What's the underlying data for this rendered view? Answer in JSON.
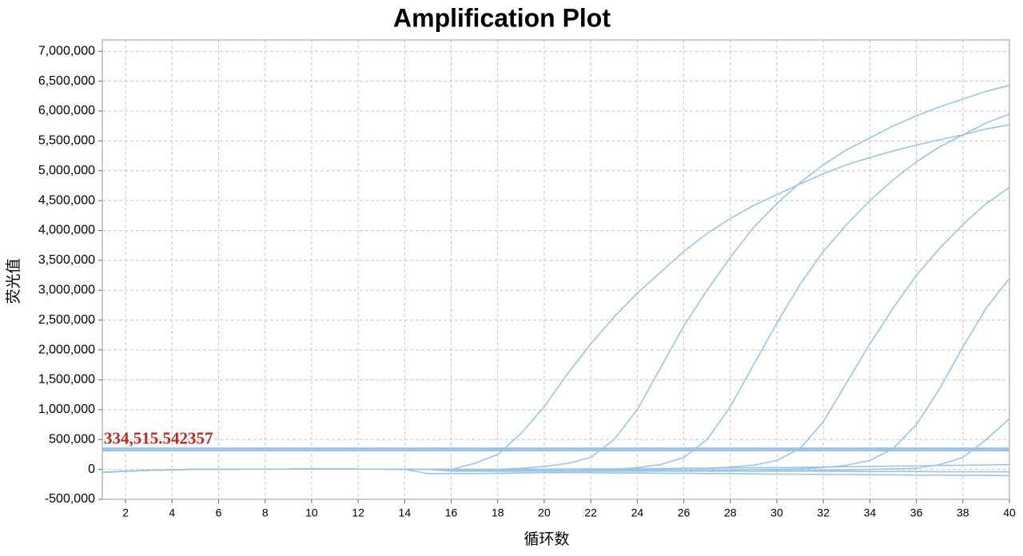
{
  "chart_data": {
    "type": "line",
    "title": "Amplification Plot",
    "x_label": "循环数",
    "y_label": "荧光值",
    "x": [
      1,
      2,
      3,
      4,
      5,
      6,
      7,
      8,
      9,
      10,
      11,
      12,
      13,
      14,
      15,
      16,
      17,
      18,
      19,
      20,
      21,
      22,
      23,
      24,
      25,
      26,
      27,
      28,
      29,
      30,
      31,
      32,
      33,
      34,
      35,
      36,
      37,
      38,
      39,
      40
    ],
    "xlim": [
      1,
      40
    ],
    "xticks": [
      2,
      4,
      6,
      8,
      10,
      12,
      14,
      16,
      18,
      20,
      22,
      24,
      26,
      28,
      30,
      32,
      34,
      36,
      38,
      40
    ],
    "ylim": [
      -500000,
      7190000
    ],
    "yticks": [
      {
        "value": -500000,
        "label": "-500,000"
      },
      0,
      {
        "value": 500000,
        "label": "500,000"
      },
      {
        "value": 1000000,
        "label": "1,000,000"
      },
      {
        "value": 1500000,
        "label": "1,500,000"
      },
      {
        "value": 2000000,
        "label": "2,000,000"
      },
      {
        "value": 2500000,
        "label": "2,500,000"
      },
      {
        "value": 3000000,
        "label": "3,000,000"
      },
      {
        "value": 3500000,
        "label": "3,500,000"
      },
      {
        "value": 4000000,
        "label": "4,000,000"
      },
      {
        "value": 4500000,
        "label": "4,500,000"
      },
      {
        "value": 5000000,
        "label": "5,000,000"
      },
      {
        "value": 5500000,
        "label": "5,500,000"
      },
      {
        "value": 6000000,
        "label": "6,000,000"
      },
      {
        "value": 6500000,
        "label": "6,500,000"
      },
      {
        "value": 7000000,
        "label": "7,000,000"
      }
    ],
    "grid": true,
    "threshold": 334515.542357,
    "threshold_label": "334,515.542357",
    "threshold_color": "#9dc3e6",
    "threshold_label_color": "#c0281e",
    "series": [
      {
        "color": "#9ac5e6",
        "values": [
          -50000,
          -30000,
          -15000,
          -5000,
          0,
          0,
          5000,
          5000,
          5000,
          10000,
          10000,
          5000,
          5000,
          0,
          0,
          0,
          100000,
          250000,
          600000,
          1050000,
          1600000,
          2100000,
          2550000,
          2950000,
          3300000,
          3650000,
          3950000,
          4200000,
          4420000,
          4600000,
          4780000,
          4950000,
          5100000,
          5220000,
          5330000,
          5430000,
          5520000,
          5600000,
          5700000,
          5770000
        ]
      },
      {
        "color": "#9ac5e6",
        "values": [
          -50000,
          -30000,
          -15000,
          -5000,
          0,
          0,
          5000,
          5000,
          5000,
          10000,
          10000,
          5000,
          5000,
          0,
          0,
          0,
          0,
          0,
          20000,
          50000,
          100000,
          200000,
          500000,
          1000000,
          1700000,
          2400000,
          3000000,
          3550000,
          4050000,
          4450000,
          4800000,
          5100000,
          5350000,
          5550000,
          5750000,
          5920000,
          6070000,
          6200000,
          6330000,
          6430000
        ]
      },
      {
        "color": "#9ac5e6",
        "values": [
          -50000,
          -30000,
          -15000,
          -5000,
          0,
          0,
          5000,
          5000,
          5000,
          10000,
          10000,
          5000,
          5000,
          0,
          0,
          0,
          0,
          -10000,
          -20000,
          -20000,
          -20000,
          -10000,
          0,
          30000,
          80000,
          200000,
          500000,
          1050000,
          1750000,
          2450000,
          3100000,
          3650000,
          4100000,
          4500000,
          4850000,
          5150000,
          5400000,
          5600000,
          5800000,
          5950000
        ]
      },
      {
        "color": "#9ac5e6",
        "values": [
          -50000,
          -30000,
          -15000,
          -5000,
          0,
          0,
          5000,
          5000,
          5000,
          10000,
          10000,
          5000,
          5000,
          0,
          0,
          -20000,
          -30000,
          -30000,
          -30000,
          -20000,
          -20000,
          -10000,
          -10000,
          0,
          0,
          10000,
          20000,
          40000,
          70000,
          150000,
          350000,
          800000,
          1450000,
          2100000,
          2700000,
          3250000,
          3700000,
          4100000,
          4450000,
          4720000
        ]
      },
      {
        "color": "#9ac5e6",
        "values": [
          -50000,
          -30000,
          -15000,
          -5000,
          0,
          0,
          5000,
          5000,
          5000,
          10000,
          10000,
          5000,
          5000,
          0,
          0,
          -10000,
          -20000,
          -20000,
          -20000,
          -20000,
          -20000,
          -20000,
          -20000,
          -20000,
          -20000,
          -20000,
          -10000,
          -10000,
          0,
          0,
          10000,
          30000,
          70000,
          150000,
          350000,
          750000,
          1350000,
          2050000,
          2700000,
          3200000
        ]
      },
      {
        "color": "#9ac5e6",
        "values": [
          -50000,
          -30000,
          -15000,
          -5000,
          0,
          0,
          5000,
          5000,
          5000,
          10000,
          10000,
          5000,
          5000,
          0,
          0,
          -30000,
          -30000,
          -30000,
          -30000,
          -30000,
          -30000,
          -30000,
          -30000,
          -30000,
          -30000,
          -30000,
          -30000,
          -30000,
          -30000,
          -20000,
          -20000,
          -10000,
          -10000,
          0,
          10000,
          20000,
          80000,
          200000,
          500000,
          850000
        ]
      },
      {
        "color": "#9ac5e6",
        "values": [
          -50000,
          -30000,
          -15000,
          -5000,
          0,
          0,
          5000,
          5000,
          5000,
          10000,
          10000,
          5000,
          5000,
          0,
          -70000,
          -70000,
          -70000,
          -65000,
          -60000,
          -55000,
          -55000,
          -55000,
          -60000,
          -60000,
          -65000,
          -65000,
          -70000,
          -70000,
          -75000,
          -80000,
          -80000,
          -85000,
          -85000,
          -90000,
          -90000,
          -95000,
          -95000,
          -100000,
          -100000,
          -105000
        ]
      },
      {
        "color": "#9ac5e6",
        "values": [
          -50000,
          -30000,
          -15000,
          -5000,
          0,
          0,
          5000,
          5000,
          5000,
          10000,
          10000,
          5000,
          5000,
          0,
          0,
          0,
          0,
          0,
          5000,
          5000,
          10000,
          10000,
          10000,
          15000,
          15000,
          20000,
          20000,
          25000,
          30000,
          30000,
          35000,
          40000,
          45000,
          50000,
          55000,
          60000,
          65000,
          70000,
          75000,
          80000
        ]
      },
      {
        "color": "#9ac5e6",
        "values": [
          -50000,
          -30000,
          -15000,
          -5000,
          0,
          0,
          5000,
          5000,
          5000,
          10000,
          10000,
          5000,
          5000,
          0,
          0,
          -10000,
          -10000,
          -15000,
          -15000,
          -15000,
          -20000,
          -20000,
          -20000,
          -20000,
          -25000,
          -25000,
          -25000,
          -25000,
          -30000,
          -30000,
          -30000,
          -30000,
          -35000,
          -35000,
          -35000,
          -35000,
          -40000,
          -40000,
          -40000,
          -40000
        ]
      }
    ]
  }
}
